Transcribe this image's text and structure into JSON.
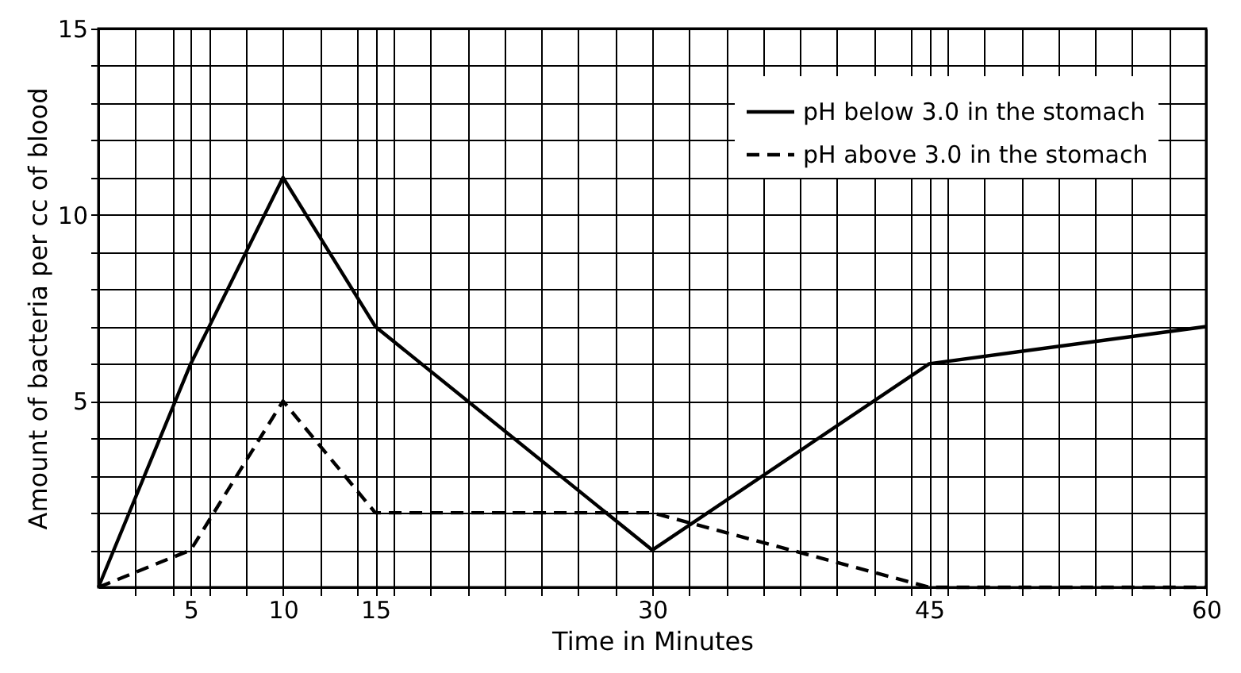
{
  "chart_data": {
    "type": "line",
    "xlabel": "Time in Minutes",
    "ylabel": "Amount of bacteria per cc of blood",
    "xlim": [
      0,
      60
    ],
    "ylim": [
      0,
      15
    ],
    "xticks": [
      {
        "value": 2,
        "label": null
      },
      {
        "value": 4,
        "label": null
      },
      5,
      {
        "value": 6,
        "label": null
      },
      {
        "value": 8,
        "label": null
      },
      10,
      {
        "value": 12,
        "label": null
      },
      {
        "value": 14,
        "label": null
      },
      15,
      {
        "value": 16,
        "label": null
      },
      {
        "value": 18,
        "label": null
      },
      {
        "value": 20,
        "label": null
      },
      {
        "value": 22,
        "label": null
      },
      {
        "value": 24,
        "label": null
      },
      {
        "value": 26,
        "label": null
      },
      {
        "value": 28,
        "label": null
      },
      30,
      {
        "value": 32,
        "label": null
      },
      {
        "value": 34,
        "label": null
      },
      {
        "value": 36,
        "label": null
      },
      {
        "value": 38,
        "label": null
      },
      {
        "value": 40,
        "label": null
      },
      {
        "value": 42,
        "label": null
      },
      {
        "value": 44,
        "label": null
      },
      45,
      {
        "value": 46,
        "label": null
      },
      {
        "value": 48,
        "label": null
      },
      {
        "value": 50,
        "label": null
      },
      {
        "value": 52,
        "label": null
      },
      {
        "value": 54,
        "label": null
      },
      {
        "value": 56,
        "label": null
      },
      {
        "value": 58,
        "label": null
      },
      60
    ],
    "yticks": [
      {
        "value": 1,
        "label": null
      },
      {
        "value": 2,
        "label": null
      },
      {
        "value": 3,
        "label": null
      },
      {
        "value": 4,
        "label": null
      },
      5,
      {
        "value": 6,
        "label": null
      },
      {
        "value": 7,
        "label": null
      },
      {
        "value": 8,
        "label": null
      },
      {
        "value": 9,
        "label": null
      },
      10,
      {
        "value": 11,
        "label": null
      },
      {
        "value": 12,
        "label": null
      },
      {
        "value": 13,
        "label": null
      },
      {
        "value": 14,
        "label": null
      },
      15
    ],
    "grid": true,
    "legend": "top right",
    "marker": "none",
    "x": [
      0,
      5,
      10,
      15,
      30,
      45,
      60
    ],
    "series": [
      {
        "name": "pH below 3.0 in the stomach",
        "color": "#000000",
        "line_style": "solid",
        "values": [
          0,
          6,
          11,
          7,
          1,
          6,
          7
        ]
      },
      {
        "name": "pH above 3.0 in the stomach",
        "color": "#000000",
        "line_style": "dashed",
        "values": [
          0,
          1,
          5,
          2,
          2,
          0,
          0
        ]
      }
    ]
  }
}
